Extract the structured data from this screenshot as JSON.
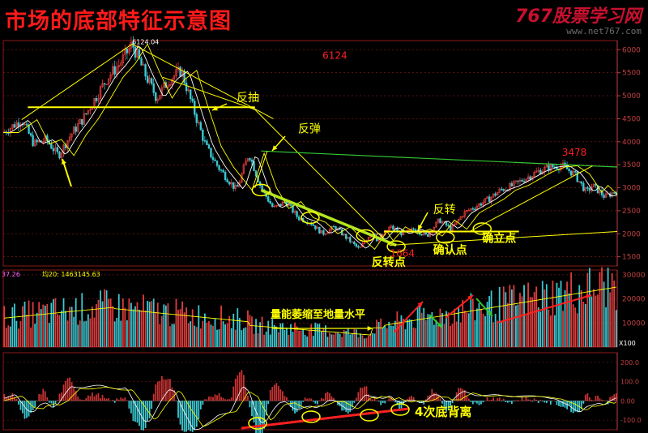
{
  "header": {
    "title": "市场的底部特征示意图",
    "watermark": "767股票学习网",
    "watermark_url": "www.net767.com"
  },
  "colors": {
    "up": "#e03c3c",
    "down": "#3cc8d2",
    "yellow": "#ffff00",
    "green": "#33c633",
    "red": "#ff2020",
    "grid": "#8b1a1a",
    "axis": "#c04040",
    "white": "#ffffff"
  },
  "chart_data": [
    {
      "type": "line",
      "panel": "price",
      "ylim": [
        1300,
        6200
      ],
      "yticks": [
        1500,
        2000,
        2500,
        3000,
        3500,
        4000,
        4500,
        5000,
        5500,
        6000
      ],
      "ytick_labels": [
        "1500",
        "2000",
        "2500",
        "3000",
        "3500",
        "4000",
        "4500",
        "5000",
        "5500",
        "6000"
      ],
      "x_range": [
        0,
        100
      ],
      "series": [
        {
          "x": [
            0,
            3,
            5,
            7,
            9,
            11,
            13,
            15,
            17,
            19,
            21,
            23,
            25,
            27,
            29,
            31,
            33,
            35,
            38,
            40,
            42,
            44,
            46,
            48,
            50,
            52,
            54,
            56,
            58,
            60,
            61,
            63,
            65,
            67,
            69,
            71,
            73,
            75,
            77,
            79,
            81,
            83,
            85,
            87,
            89,
            91,
            93,
            95,
            96,
            98,
            100
          ],
          "values": [
            4200,
            4480,
            3950,
            4050,
            3700,
            4150,
            4500,
            4950,
            5400,
            5700,
            6124,
            5500,
            4950,
            5350,
            5550,
            4700,
            3900,
            3450,
            2950,
            3750,
            3000,
            2550,
            2700,
            2350,
            2250,
            2000,
            2150,
            1900,
            1664,
            2050,
            1850,
            2150,
            2000,
            2100,
            1950,
            2300,
            2100,
            2450,
            2600,
            2750,
            2950,
            3050,
            3200,
            3350,
            3450,
            3478,
            3300,
            2900,
            3050,
            2800,
            2950
          ]
        }
      ],
      "annotations": [
        {
          "text": "6124.04",
          "x": 21,
          "y": 6124
        },
        {
          "text": "6124",
          "x": 52,
          "y": 5800
        },
        {
          "text": "3478",
          "x": 91,
          "y": 3700
        },
        {
          "text": "1664",
          "x": 63,
          "y": 1500
        },
        {
          "text": "反抽",
          "x": 38,
          "y": 4880
        },
        {
          "text": "反弹",
          "x": 48,
          "y": 4200
        },
        {
          "text": "反转",
          "x": 70,
          "y": 2450
        },
        {
          "text": "反转点",
          "x": 60,
          "y": 1300
        },
        {
          "text": "确认点",
          "x": 70,
          "y": 1560
        },
        {
          "text": "确立点",
          "x": 78,
          "y": 1820
        }
      ]
    },
    {
      "type": "bar",
      "panel": "volume",
      "legend": [
        "37.26",
        "均20: 1463145.63"
      ],
      "ylim": [
        0,
        32000
      ],
      "yticks": [
        10000,
        20000,
        30000
      ],
      "ytick_labels": [
        "10000",
        "20000",
        "30000"
      ],
      "unit_label": "X100",
      "annotation": "量能萎缩至地量水平"
    },
    {
      "type": "bar",
      "panel": "macd",
      "ylim": [
        -150,
        250
      ],
      "yticks": [
        -100,
        0,
        100,
        200
      ],
      "ytick_labels": [
        "-100.0",
        "0.00",
        "100.0",
        "200.0"
      ],
      "annotation": "4次底背离"
    }
  ]
}
